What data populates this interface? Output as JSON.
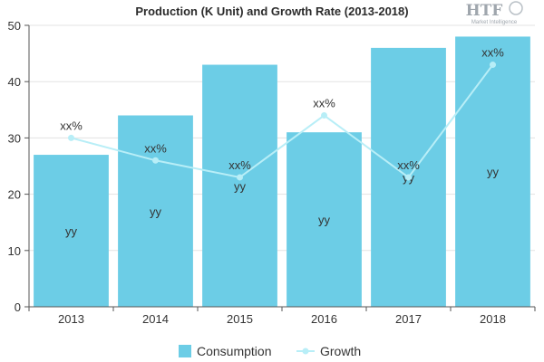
{
  "logo": {
    "text": "HTF",
    "subtitle": "Market Intelligence"
  },
  "chart_data": {
    "type": "bar",
    "title": "Production (K Unit) and Growth Rate (2013-2018)",
    "categories": [
      "2013",
      "2014",
      "2015",
      "2016",
      "2017",
      "2018"
    ],
    "ylim": [
      0,
      50
    ],
    "yticks": [
      0,
      10,
      20,
      30,
      40,
      50
    ],
    "grid": true,
    "legend_position": "bottom",
    "series": [
      {
        "name": "Consumption",
        "type": "bar",
        "values": [
          27,
          34,
          43,
          31,
          46,
          48
        ],
        "labels": [
          "yy",
          "yy",
          "yy",
          "yy",
          "yy",
          "yy"
        ],
        "color": "#6ccde6"
      },
      {
        "name": "Growth",
        "type": "line",
        "values": [
          30,
          26,
          23,
          34,
          23,
          43
        ],
        "labels": [
          "xx%",
          "xx%",
          "xx%",
          "xx%",
          "xx%",
          "xx%"
        ],
        "color": "#b8eef7"
      }
    ]
  }
}
